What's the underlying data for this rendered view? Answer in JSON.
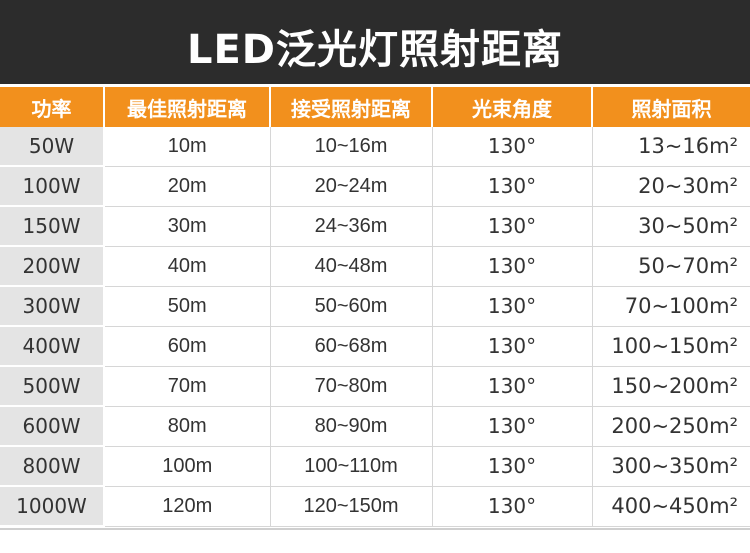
{
  "title": "LED泛光灯照射距离",
  "colors": {
    "title_bg": "#2c2c2c",
    "header_bg": "#f2901d",
    "power_col_bg": "#e4e4e4"
  },
  "table": {
    "headers": [
      "功率",
      "最佳照射距离",
      "接受照射距离",
      "光束角度",
      "照射面积"
    ],
    "rows": [
      [
        "50W",
        "10m",
        "10~16m",
        "130°",
        "13~16m²"
      ],
      [
        "100W",
        "20m",
        "20~24m",
        "130°",
        "20~30m²"
      ],
      [
        "150W",
        "30m",
        "24~36m",
        "130°",
        "30~50m²"
      ],
      [
        "200W",
        "40m",
        "40~48m",
        "130°",
        "50~70m²"
      ],
      [
        "300W",
        "50m",
        "50~60m",
        "130°",
        "70~100m²"
      ],
      [
        "400W",
        "60m",
        "60~68m",
        "130°",
        "100~150m²"
      ],
      [
        "500W",
        "70m",
        "70~80m",
        "130°",
        "150~200m²"
      ],
      [
        "600W",
        "80m",
        "80~90m",
        "130°",
        "200~250m²"
      ],
      [
        "800W",
        "100m",
        "100~110m",
        "130°",
        "300~350m²"
      ],
      [
        "1000W",
        "120m",
        "120~150m",
        "130°",
        "400~450m²"
      ]
    ]
  }
}
